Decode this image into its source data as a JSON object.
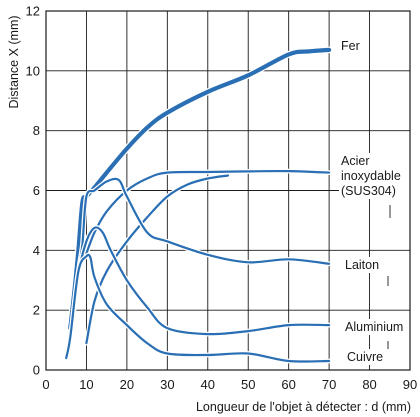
{
  "chart_data": {
    "type": "line",
    "title": "",
    "xlabel": "Longueur de l'objet à détecter : d (mm)",
    "ylabel": "Distance X (mm)",
    "xlim": [
      0,
      90
    ],
    "ylim": [
      0,
      12
    ],
    "xticks": [
      0,
      10,
      20,
      30,
      40,
      50,
      60,
      70,
      80,
      90
    ],
    "yticks": [
      0,
      2,
      4,
      6,
      8,
      10,
      12
    ],
    "grid": true,
    "colors": {
      "line": "#2a6fb4",
      "grid": "#1a1a1a",
      "axis": "#1a1a1a"
    },
    "series": [
      {
        "name": "Fer",
        "label_lines": [
          "Fer"
        ],
        "emphasis": true,
        "x": [
          6,
          7,
          8,
          9,
          10,
          12,
          15,
          20,
          25,
          30,
          40,
          50,
          60,
          65,
          70
        ],
        "y": [
          1.4,
          2.6,
          4.0,
          5.6,
          5.8,
          6.1,
          6.6,
          7.4,
          8.1,
          8.6,
          9.3,
          9.85,
          10.55,
          10.65,
          10.7
        ]
      },
      {
        "name": "Acier inoxydable (SUS304)",
        "label_lines": [
          "Acier",
          "inoxydable",
          "(SUS304)"
        ],
        "emphasis": false,
        "x": [
          10,
          12,
          15,
          20,
          25,
          30,
          40,
          50,
          60,
          70
        ],
        "y": [
          3.9,
          4.6,
          5.3,
          6.0,
          6.4,
          6.6,
          6.62,
          6.64,
          6.65,
          6.6
        ],
        "branch": {
          "x": [
            10,
            12,
            15,
            20,
            25,
            30,
            35,
            40,
            45
          ],
          "y": [
            0.9,
            2.3,
            3.3,
            4.3,
            5.1,
            5.8,
            6.2,
            6.4,
            6.5
          ]
        }
      },
      {
        "name": "Laiton",
        "label_lines": [
          "Laiton"
        ],
        "emphasis": false,
        "x": [
          6,
          8,
          9,
          10,
          12,
          15,
          18,
          20,
          25,
          30,
          40,
          50,
          60,
          70
        ],
        "y": [
          1.0,
          3.3,
          4.2,
          5.8,
          6.0,
          6.3,
          6.35,
          5.8,
          4.6,
          4.3,
          3.85,
          3.6,
          3.7,
          3.55
        ]
      },
      {
        "name": "Aluminium",
        "label_lines": [
          "Aluminium"
        ],
        "emphasis": false,
        "x": [
          6,
          8,
          10,
          12,
          14,
          16,
          20,
          25,
          30,
          40,
          50,
          60,
          70
        ],
        "y": [
          0.9,
          3.2,
          4.3,
          4.75,
          4.6,
          4.0,
          3.0,
          2.1,
          1.4,
          1.2,
          1.3,
          1.5,
          1.5
        ]
      },
      {
        "name": "Cuivre",
        "label_lines": [
          "Cuivre"
        ],
        "emphasis": false,
        "x": [
          5,
          6,
          8,
          10,
          11,
          12,
          15,
          20,
          25,
          30,
          40,
          50,
          60,
          70
        ],
        "y": [
          0.4,
          1.1,
          3.3,
          3.8,
          3.75,
          3.1,
          2.2,
          1.5,
          0.9,
          0.55,
          0.5,
          0.55,
          0.3,
          0.3
        ]
      }
    ]
  }
}
